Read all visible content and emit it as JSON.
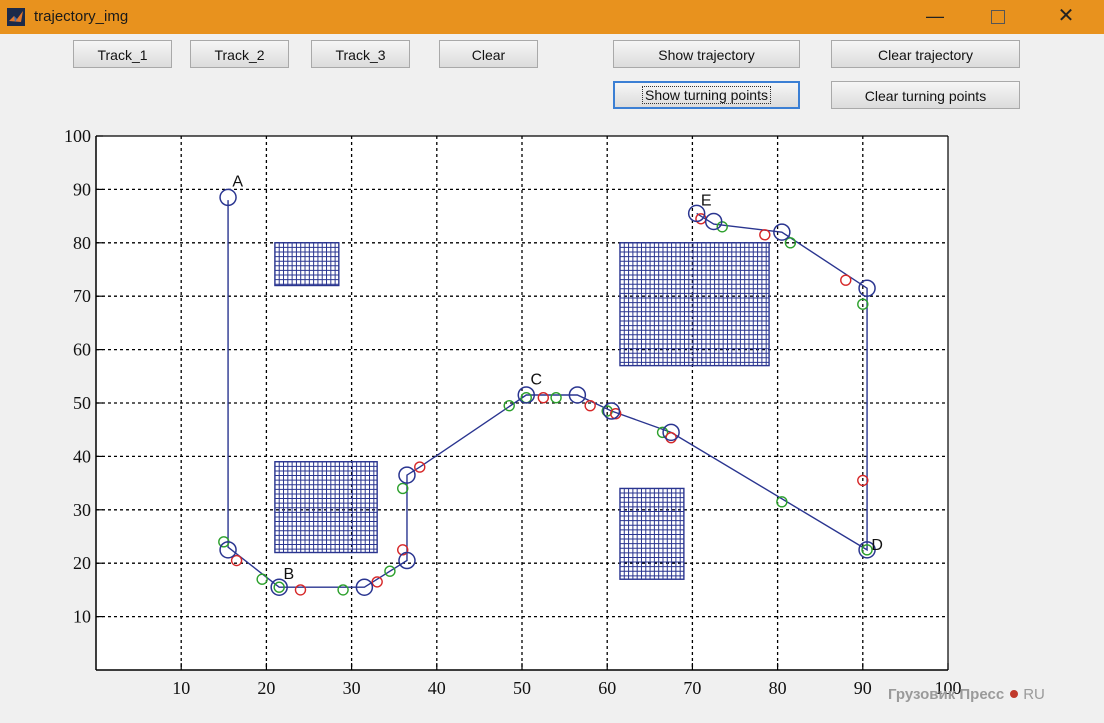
{
  "window": {
    "title": "trajectory_img",
    "minimize_glyph": "—",
    "close_glyph": "✕"
  },
  "buttons": {
    "track1": "Track_1",
    "track2": "Track_2",
    "track3": "Track_3",
    "clear": "Clear",
    "show_trajectory": "Show trajectory",
    "clear_trajectory": "Clear trajectory",
    "show_turning_points": "Show turning points",
    "clear_turning_points": "Clear turning points"
  },
  "watermark": {
    "text": "Грузовик Пресс",
    "suffix": "RU"
  },
  "chart_data": {
    "type": "scatter",
    "xlim": [
      0,
      100
    ],
    "ylim": [
      0,
      100
    ],
    "xticks": [
      10,
      20,
      30,
      40,
      50,
      60,
      70,
      80,
      90,
      100
    ],
    "yticks": [
      10,
      20,
      30,
      40,
      50,
      60,
      70,
      80,
      90,
      100
    ],
    "grid": "on",
    "colors": {
      "trajectory": "#2a3590",
      "obstacle": "#2a3590",
      "green_points": "#2ca02c",
      "red_points": "#d62728"
    },
    "obstacles": [
      {
        "x": [
          21,
          28.5
        ],
        "y": [
          72,
          80
        ]
      },
      {
        "x": [
          21,
          33
        ],
        "y": [
          22,
          39
        ]
      },
      {
        "x": [
          61.5,
          79
        ],
        "y": [
          57,
          80
        ]
      },
      {
        "x": [
          61.5,
          69
        ],
        "y": [
          17,
          34
        ]
      }
    ],
    "trajectory": [
      [
        15.5,
        88
      ],
      [
        15.5,
        23
      ],
      [
        21.5,
        15.5
      ],
      [
        31.5,
        15.5
      ],
      [
        36.5,
        20.5
      ],
      [
        36.5,
        36.5
      ],
      [
        38,
        38
      ],
      [
        50.5,
        51.5
      ],
      [
        56.5,
        51.5
      ],
      [
        60.5,
        48.5
      ],
      [
        67.5,
        44.5
      ],
      [
        90.5,
        22.5
      ],
      [
        90.5,
        71.5
      ],
      [
        80.5,
        82
      ],
      [
        72.5,
        83.5
      ],
      [
        70.5,
        85.5
      ]
    ],
    "blue_circles": [
      [
        15.5,
        88.5
      ],
      [
        15.5,
        22.5
      ],
      [
        21.5,
        15.5
      ],
      [
        31.5,
        15.5
      ],
      [
        36.5,
        20.5
      ],
      [
        36.5,
        36.5
      ],
      [
        50.5,
        51.5
      ],
      [
        56.5,
        51.5
      ],
      [
        60.5,
        48.5
      ],
      [
        67.5,
        44.5
      ],
      [
        90.5,
        22.5
      ],
      [
        90.5,
        71.5
      ],
      [
        80.5,
        82
      ],
      [
        72.5,
        84
      ],
      [
        70.5,
        85.5
      ]
    ],
    "green_circles": [
      [
        15,
        24
      ],
      [
        19.5,
        17
      ],
      [
        21.5,
        15.5
      ],
      [
        29,
        15
      ],
      [
        34.5,
        18.5
      ],
      [
        36,
        34
      ],
      [
        48.5,
        49.5
      ],
      [
        50.5,
        51
      ],
      [
        54,
        51
      ],
      [
        60,
        48.5
      ],
      [
        66.5,
        44.5
      ],
      [
        80.5,
        31.5
      ],
      [
        90,
        68.5
      ],
      [
        90.5,
        22.5
      ],
      [
        81.5,
        80
      ],
      [
        73.5,
        83
      ]
    ],
    "red_circles": [
      [
        16.5,
        20.5
      ],
      [
        24,
        15
      ],
      [
        33,
        16.5
      ],
      [
        36,
        22.5
      ],
      [
        38,
        38
      ],
      [
        52.5,
        51
      ],
      [
        58,
        49.5
      ],
      [
        61,
        48
      ],
      [
        67.5,
        43.5
      ],
      [
        71,
        84.5
      ],
      [
        78.5,
        81.5
      ],
      [
        88,
        73
      ],
      [
        90,
        35.5
      ]
    ],
    "point_labels": [
      {
        "text": "A",
        "x": 16,
        "y": 90.5
      },
      {
        "text": "B",
        "x": 22,
        "y": 17
      },
      {
        "text": "C",
        "x": 51,
        "y": 53.5
      },
      {
        "text": "D",
        "x": 91,
        "y": 22.5
      },
      {
        "text": "E",
        "x": 71,
        "y": 87
      }
    ]
  }
}
